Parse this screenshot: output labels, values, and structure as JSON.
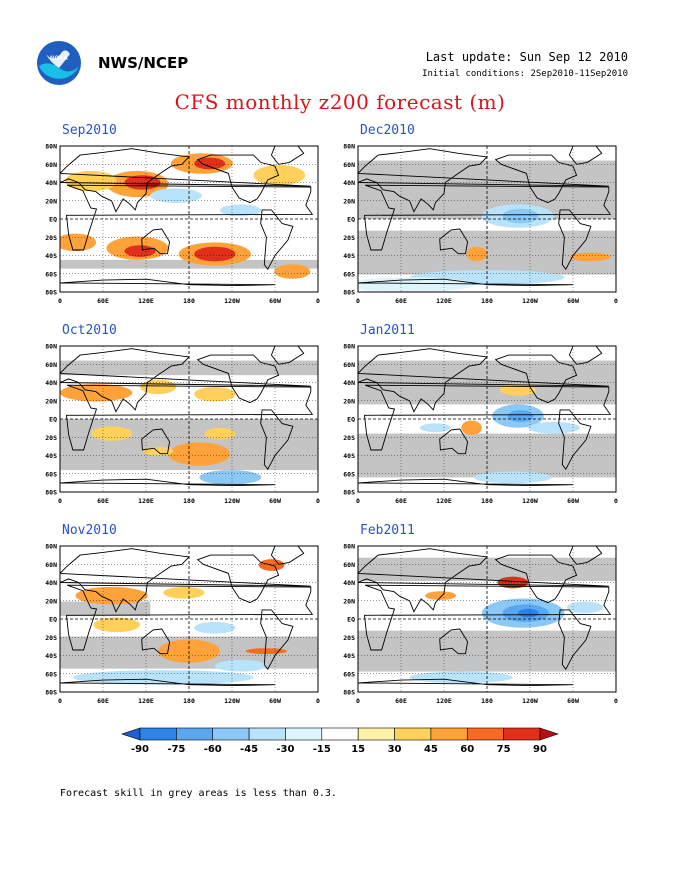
{
  "header": {
    "agency": "NWS/NCEP",
    "last_update": "Last update: Sun Sep 12 2010",
    "initial_conditions": "Initial conditions: 2Sep2010-11Sep2010"
  },
  "title": "CFS monthly z200 forecast (m)",
  "axes": {
    "lat_labels": [
      "80N",
      "60N",
      "40N",
      "20N",
      "EQ",
      "20S",
      "40S",
      "60S",
      "80S"
    ],
    "lon_labels": [
      "0",
      "60E",
      "120E",
      "180",
      "120W",
      "60W",
      "0"
    ]
  },
  "panels": [
    {
      "label": "Sep2010"
    },
    {
      "label": "Dec2010"
    },
    {
      "label": "Oct2010"
    },
    {
      "label": "Jan2011"
    },
    {
      "label": "Nov2010"
    },
    {
      "label": "Feb2011"
    }
  ],
  "colorbar": {
    "levels": [
      "-90",
      "-75",
      "-60",
      "-45",
      "-30",
      "-15",
      "15",
      "30",
      "45",
      "60",
      "75",
      "90"
    ],
    "colors": [
      "#1c5fd6",
      "#2e83e8",
      "#5aa7f0",
      "#8cc8f5",
      "#b8e3fa",
      "#dff5fc",
      "#ffffff",
      "#fff1a8",
      "#ffd15a",
      "#ffa23a",
      "#f66a22",
      "#e0301b",
      "#b8100f"
    ]
  },
  "footnote": "Forecast skill in grey areas is less than 0.3."
}
